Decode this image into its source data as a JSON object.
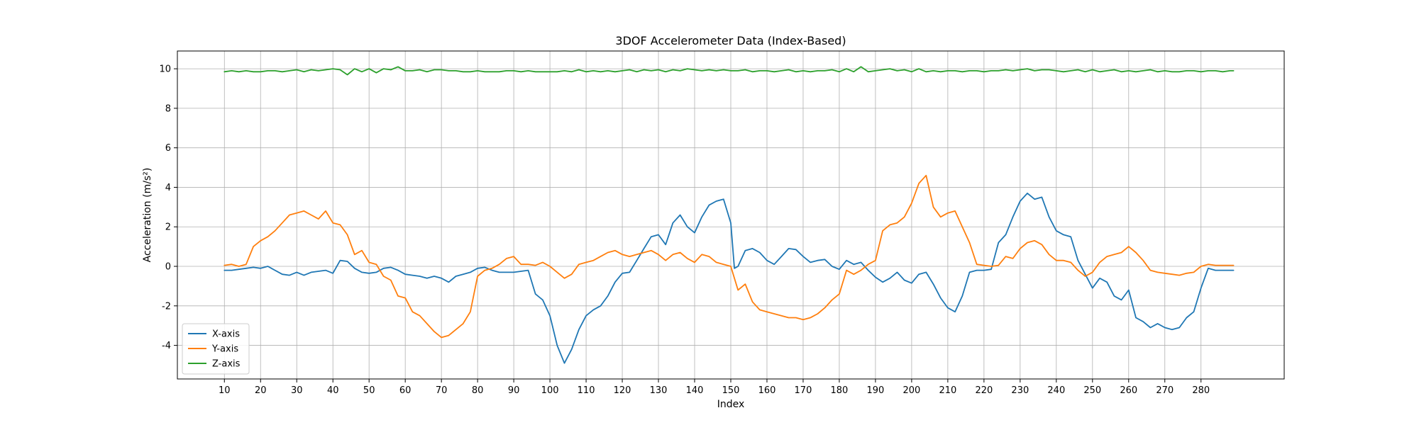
{
  "chart_data": {
    "type": "line",
    "title": "3DOF Accelerometer Data (Index-Based)",
    "xlabel": "Index",
    "ylabel": "Acceleration (m/s²)",
    "xlim": [
      -3,
      303
    ],
    "ylim": [
      -5.7,
      10.9
    ],
    "xticks": [
      10,
      20,
      30,
      40,
      50,
      60,
      70,
      80,
      90,
      100,
      110,
      120,
      130,
      140,
      150,
      160,
      170,
      180,
      190,
      200,
      210,
      220,
      230,
      240,
      250,
      260,
      270,
      280
    ],
    "yticks": [
      -4,
      -2,
      0,
      2,
      4,
      6,
      8,
      10
    ],
    "grid": true,
    "legend_position": "lower-left",
    "series": [
      {
        "name": "X-axis",
        "color": "#1f77b4",
        "x": [
          10,
          12,
          14,
          16,
          18,
          20,
          22,
          24,
          26,
          28,
          30,
          32,
          34,
          36,
          38,
          40,
          42,
          44,
          46,
          48,
          50,
          52,
          54,
          56,
          58,
          60,
          62,
          64,
          66,
          68,
          70,
          72,
          74,
          76,
          78,
          80,
          82,
          84,
          86,
          88,
          90,
          92,
          94,
          96,
          98,
          100,
          102,
          104,
          106,
          108,
          110,
          112,
          114,
          116,
          118,
          120,
          122,
          124,
          126,
          128,
          130,
          132,
          134,
          136,
          138,
          140,
          142,
          144,
          146,
          148,
          150,
          151,
          152,
          154,
          156,
          158,
          160,
          162,
          164,
          166,
          168,
          170,
          172,
          174,
          176,
          178,
          180,
          182,
          184,
          186,
          188,
          190,
          192,
          194,
          196,
          198,
          200,
          202,
          204,
          206,
          208,
          210,
          212,
          214,
          216,
          218,
          220,
          222,
          224,
          226,
          228,
          230,
          232,
          234,
          236,
          238,
          240,
          242,
          244,
          246,
          248,
          250,
          252,
          254,
          256,
          258,
          260,
          262,
          264,
          266,
          268,
          270,
          272,
          274,
          276,
          278,
          280,
          282,
          284,
          286,
          288,
          289
        ],
        "values": [
          -0.2,
          -0.2,
          -0.15,
          -0.1,
          -0.05,
          -0.1,
          0.0,
          -0.2,
          -0.4,
          -0.45,
          -0.3,
          -0.45,
          -0.3,
          -0.25,
          -0.2,
          -0.35,
          0.3,
          0.25,
          -0.1,
          -0.3,
          -0.35,
          -0.3,
          -0.1,
          -0.05,
          -0.2,
          -0.4,
          -0.45,
          -0.5,
          -0.6,
          -0.5,
          -0.6,
          -0.8,
          -0.5,
          -0.4,
          -0.3,
          -0.1,
          -0.05,
          -0.2,
          -0.3,
          -0.3,
          -0.3,
          -0.25,
          -0.2,
          -1.4,
          -1.7,
          -2.5,
          -4.0,
          -4.9,
          -4.2,
          -3.2,
          -2.5,
          -2.2,
          -2.0,
          -1.5,
          -0.8,
          -0.35,
          -0.3,
          0.3,
          0.9,
          1.5,
          1.6,
          1.1,
          2.2,
          2.6,
          2.0,
          1.7,
          2.5,
          3.1,
          3.3,
          3.4,
          2.2,
          -0.1,
          0.0,
          0.8,
          0.9,
          0.7,
          0.3,
          0.1,
          0.5,
          0.9,
          0.85,
          0.5,
          0.2,
          0.3,
          0.35,
          0.0,
          -0.15,
          0.3,
          0.1,
          0.2,
          -0.2,
          -0.55,
          -0.8,
          -0.6,
          -0.3,
          -0.7,
          -0.85,
          -0.4,
          -0.3,
          -0.9,
          -1.6,
          -2.1,
          -2.3,
          -1.5,
          -0.3,
          -0.2,
          -0.2,
          -0.15,
          1.2,
          1.6,
          2.5,
          3.3,
          3.7,
          3.4,
          3.5,
          2.5,
          1.8,
          1.6,
          1.5,
          0.3,
          -0.4,
          -1.1,
          -0.6,
          -0.8,
          -1.5,
          -1.7,
          -1.2,
          -2.6,
          -2.8,
          -3.1,
          -2.9,
          -3.1,
          -3.2,
          -3.1,
          -2.6,
          -2.3,
          -1.1,
          -0.1,
          -0.2,
          -0.2,
          -0.2,
          -0.2
        ]
      },
      {
        "name": "Y-axis",
        "color": "#ff7f0e",
        "x": [
          10,
          12,
          14,
          16,
          18,
          20,
          22,
          24,
          26,
          28,
          30,
          32,
          34,
          36,
          38,
          40,
          42,
          44,
          46,
          48,
          50,
          52,
          54,
          56,
          58,
          60,
          62,
          64,
          66,
          68,
          70,
          72,
          74,
          76,
          78,
          80,
          82,
          84,
          86,
          88,
          90,
          92,
          94,
          96,
          98,
          100,
          102,
          104,
          106,
          108,
          110,
          112,
          114,
          116,
          118,
          120,
          122,
          124,
          126,
          128,
          130,
          132,
          134,
          136,
          138,
          140,
          142,
          144,
          146,
          148,
          150,
          152,
          154,
          156,
          158,
          160,
          162,
          164,
          166,
          168,
          170,
          172,
          174,
          176,
          178,
          180,
          182,
          184,
          186,
          188,
          190,
          192,
          194,
          196,
          198,
          200,
          202,
          204,
          206,
          208,
          210,
          212,
          214,
          216,
          218,
          220,
          222,
          224,
          226,
          228,
          230,
          232,
          234,
          236,
          238,
          240,
          242,
          244,
          246,
          248,
          250,
          252,
          254,
          256,
          258,
          260,
          262,
          264,
          266,
          268,
          270,
          272,
          274,
          276,
          278,
          280,
          282,
          284,
          286,
          288,
          289
        ],
        "values": [
          0.05,
          0.1,
          0.0,
          0.1,
          1.0,
          1.3,
          1.5,
          1.8,
          2.2,
          2.6,
          2.7,
          2.8,
          2.6,
          2.4,
          2.8,
          2.2,
          2.1,
          1.6,
          0.6,
          0.8,
          0.2,
          0.1,
          -0.5,
          -0.7,
          -1.5,
          -1.6,
          -2.3,
          -2.5,
          -2.9,
          -3.3,
          -3.6,
          -3.5,
          -3.2,
          -2.9,
          -2.3,
          -0.5,
          -0.2,
          -0.1,
          0.1,
          0.4,
          0.5,
          0.1,
          0.1,
          0.05,
          0.2,
          0.0,
          -0.3,
          -0.6,
          -0.4,
          0.1,
          0.2,
          0.3,
          0.5,
          0.7,
          0.8,
          0.6,
          0.5,
          0.6,
          0.7,
          0.8,
          0.6,
          0.3,
          0.6,
          0.7,
          0.4,
          0.2,
          0.6,
          0.5,
          0.2,
          0.1,
          0.0,
          -1.2,
          -0.9,
          -1.8,
          -2.2,
          -2.3,
          -2.4,
          -2.5,
          -2.6,
          -2.6,
          -2.7,
          -2.6,
          -2.4,
          -2.1,
          -1.7,
          -1.4,
          -0.2,
          -0.4,
          -0.2,
          0.1,
          0.3,
          1.8,
          2.1,
          2.2,
          2.5,
          3.2,
          4.2,
          4.6,
          3.0,
          2.5,
          2.7,
          2.8,
          2.0,
          1.2,
          0.1,
          0.05,
          0.0,
          0.05,
          0.5,
          0.4,
          0.9,
          1.2,
          1.3,
          1.1,
          0.6,
          0.3,
          0.3,
          0.2,
          -0.2,
          -0.5,
          -0.3,
          0.2,
          0.5,
          0.6,
          0.7,
          1.0,
          0.7,
          0.3,
          -0.2,
          -0.3,
          -0.35,
          -0.4,
          -0.45,
          -0.35,
          -0.3,
          0.0,
          0.1,
          0.05,
          0.05,
          0.05,
          0.05
        ]
      },
      {
        "name": "Z-axis",
        "color": "#2ca02c",
        "x": [
          10,
          12,
          14,
          16,
          18,
          20,
          22,
          24,
          26,
          28,
          30,
          32,
          34,
          36,
          38,
          40,
          42,
          44,
          46,
          48,
          50,
          52,
          54,
          56,
          58,
          60,
          62,
          64,
          66,
          68,
          70,
          72,
          74,
          76,
          78,
          80,
          82,
          84,
          86,
          88,
          90,
          92,
          94,
          96,
          98,
          100,
          102,
          104,
          106,
          108,
          110,
          112,
          114,
          116,
          118,
          120,
          122,
          124,
          126,
          128,
          130,
          132,
          134,
          136,
          138,
          140,
          142,
          144,
          146,
          148,
          150,
          152,
          154,
          156,
          158,
          160,
          162,
          164,
          166,
          168,
          170,
          172,
          174,
          176,
          178,
          180,
          182,
          184,
          186,
          188,
          190,
          192,
          194,
          196,
          198,
          200,
          202,
          204,
          206,
          208,
          210,
          212,
          214,
          216,
          218,
          220,
          222,
          224,
          226,
          228,
          230,
          232,
          234,
          236,
          238,
          240,
          242,
          244,
          246,
          248,
          250,
          252,
          254,
          256,
          258,
          260,
          262,
          264,
          266,
          268,
          270,
          272,
          274,
          276,
          278,
          280,
          282,
          284,
          286,
          288,
          289
        ],
        "values": [
          9.85,
          9.9,
          9.85,
          9.9,
          9.85,
          9.85,
          9.9,
          9.9,
          9.85,
          9.9,
          9.95,
          9.85,
          9.95,
          9.9,
          9.95,
          10.0,
          9.95,
          9.7,
          10.0,
          9.85,
          10.0,
          9.8,
          10.0,
          9.95,
          10.1,
          9.9,
          9.9,
          9.95,
          9.85,
          9.95,
          9.95,
          9.9,
          9.9,
          9.85,
          9.85,
          9.9,
          9.85,
          9.85,
          9.85,
          9.9,
          9.9,
          9.85,
          9.9,
          9.85,
          9.85,
          9.85,
          9.85,
          9.9,
          9.85,
          9.95,
          9.85,
          9.9,
          9.85,
          9.9,
          9.85,
          9.9,
          9.95,
          9.85,
          9.95,
          9.9,
          9.95,
          9.85,
          9.95,
          9.9,
          10.0,
          9.95,
          9.9,
          9.95,
          9.9,
          9.95,
          9.9,
          9.9,
          9.95,
          9.85,
          9.9,
          9.9,
          9.85,
          9.9,
          9.95,
          9.85,
          9.9,
          9.85,
          9.9,
          9.9,
          9.95,
          9.85,
          10.0,
          9.85,
          10.1,
          9.85,
          9.9,
          9.95,
          10.0,
          9.9,
          9.95,
          9.85,
          10.0,
          9.85,
          9.9,
          9.85,
          9.9,
          9.9,
          9.85,
          9.9,
          9.9,
          9.85,
          9.9,
          9.9,
          9.95,
          9.9,
          9.95,
          10.0,
          9.9,
          9.95,
          9.95,
          9.9,
          9.85,
          9.9,
          9.95,
          9.85,
          9.95,
          9.85,
          9.9,
          9.95,
          9.85,
          9.9,
          9.85,
          9.9,
          9.95,
          9.85,
          9.9,
          9.85,
          9.85,
          9.9,
          9.9,
          9.85,
          9.9,
          9.9,
          9.85,
          9.9,
          9.9
        ]
      }
    ]
  }
}
